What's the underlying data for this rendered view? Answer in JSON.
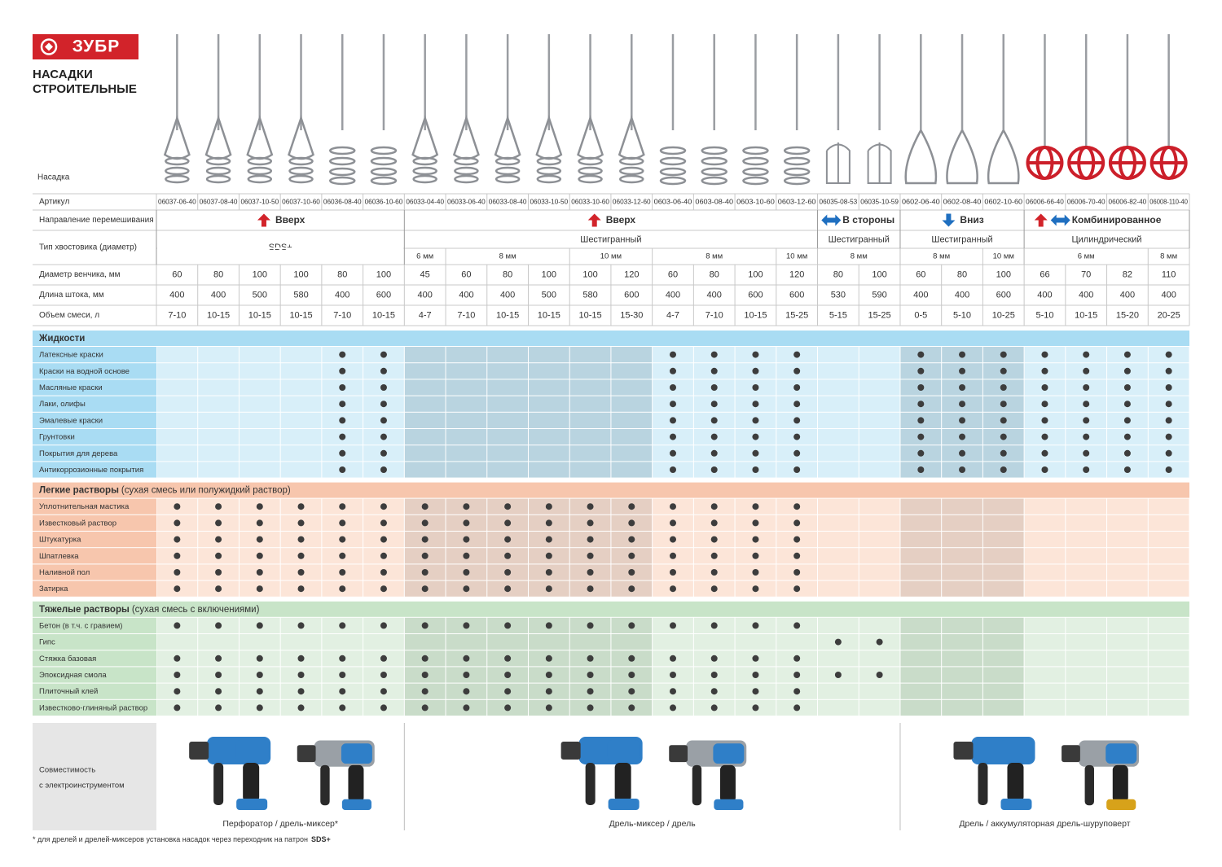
{
  "header": {
    "logo": "ЗУБР",
    "title": [
      "НАСАДКИ",
      "СТРОИТЕЛЬНЫЕ"
    ],
    "nozzle_label": "Насадка"
  },
  "specs": {
    "article_label": "Артикул",
    "articles": [
      "06037-06-40",
      "06037-08-40",
      "06037-10-50",
      "06037-10-60",
      "06036-08-40",
      "06036-10-60",
      "06033-04-40",
      "06033-06-40",
      "06033-08-40",
      "06033-10-50",
      "06033-10-60",
      "06033-12-60",
      "0603-06-40",
      "0603-08-40",
      "0603-10-60",
      "0603-12-60",
      "06035-08-53",
      "06035-10-59",
      "0602-06-40",
      "0602-08-40",
      "0602-10-60",
      "06006-66-40",
      "06006-70-40",
      "06006-82-40",
      "06008-110-40"
    ],
    "direction_label": "Направление перемешивания",
    "directions": [
      {
        "text": "Вверх",
        "arrow": "up",
        "span": 6
      },
      {
        "text": "Вверх",
        "arrow": "up",
        "span": 10
      },
      {
        "text": "В стороны",
        "arrow": "side",
        "span": 2
      },
      {
        "text": "Вниз",
        "arrow": "down",
        "span": 3
      },
      {
        "text": "Комбинированное",
        "arrow": "combined",
        "span": 4
      }
    ],
    "shank_label": "Тип хвостовика (диаметр)",
    "shanks": [
      {
        "text": "SDS+",
        "span": 6
      },
      {
        "text": "Шестигранный",
        "span": 10,
        "sizes": [
          {
            "text": "6 мм",
            "span": 1
          },
          {
            "text": "8 мм",
            "span": 3
          },
          {
            "text": "10 мм",
            "span": 2
          },
          {
            "text": "8 мм",
            "span": 3
          },
          {
            "text": "10 мм",
            "span": 1
          }
        ]
      },
      {
        "text": "Шестигранный",
        "span": 2,
        "sizes": [
          {
            "text": "8 мм",
            "span": 2
          }
        ]
      },
      {
        "text": "Шестигранный",
        "span": 3,
        "sizes": [
          {
            "text": "8 мм",
            "span": 2
          },
          {
            "text": "10 мм",
            "span": 1
          }
        ]
      },
      {
        "text": "Цилиндрический",
        "span": 4,
        "sizes": [
          {
            "text": "6 мм",
            "span": 3
          },
          {
            "text": "8 мм",
            "span": 1
          }
        ]
      }
    ],
    "diameter_label": "Диаметр венчика, мм",
    "diameters": [
      60,
      80,
      100,
      100,
      80,
      100,
      45,
      60,
      80,
      100,
      100,
      120,
      60,
      80,
      100,
      120,
      80,
      100,
      60,
      80,
      100,
      66,
      70,
      82,
      110
    ],
    "length_label": "Длина штока, мм",
    "lengths": [
      400,
      400,
      500,
      580,
      400,
      600,
      400,
      400,
      400,
      500,
      580,
      600,
      400,
      400,
      600,
      600,
      530,
      590,
      400,
      400,
      600,
      400,
      400,
      400,
      400
    ],
    "volume_label": "Объем смеси, л",
    "volumes": [
      "7-10",
      "10-15",
      "10-15",
      "10-15",
      "7-10",
      "10-15",
      "4-7",
      "7-10",
      "10-15",
      "10-15",
      "10-15",
      "15-30",
      "4-7",
      "7-10",
      "10-15",
      "15-25",
      "5-15",
      "15-25",
      "0-5",
      "5-10",
      "10-25",
      "5-10",
      "10-15",
      "15-20",
      "20-25"
    ]
  },
  "sections": [
    {
      "title": "Жидкости",
      "colors": {
        "header": "#a9dcf3",
        "label": "#a9dcf3",
        "cell": "#d8eff9",
        "shaded": "#b9d4e0"
      },
      "rows": [
        {
          "name": "Латексные краски",
          "marks": [
            0,
            0,
            0,
            0,
            1,
            1,
            0,
            0,
            0,
            0,
            0,
            0,
            1,
            1,
            1,
            1,
            0,
            0,
            1,
            1,
            1,
            1,
            1,
            1,
            1
          ]
        },
        {
          "name": "Краски на водной основе",
          "marks": [
            0,
            0,
            0,
            0,
            1,
            1,
            0,
            0,
            0,
            0,
            0,
            0,
            1,
            1,
            1,
            1,
            0,
            0,
            1,
            1,
            1,
            1,
            1,
            1,
            1
          ]
        },
        {
          "name": "Масляные краски",
          "marks": [
            0,
            0,
            0,
            0,
            1,
            1,
            0,
            0,
            0,
            0,
            0,
            0,
            1,
            1,
            1,
            1,
            0,
            0,
            1,
            1,
            1,
            1,
            1,
            1,
            1
          ]
        },
        {
          "name": "Лаки, олифы",
          "marks": [
            0,
            0,
            0,
            0,
            1,
            1,
            0,
            0,
            0,
            0,
            0,
            0,
            1,
            1,
            1,
            1,
            0,
            0,
            1,
            1,
            1,
            1,
            1,
            1,
            1
          ]
        },
        {
          "name": "Эмалевые краски",
          "marks": [
            0,
            0,
            0,
            0,
            1,
            1,
            0,
            0,
            0,
            0,
            0,
            0,
            1,
            1,
            1,
            1,
            0,
            0,
            1,
            1,
            1,
            1,
            1,
            1,
            1
          ]
        },
        {
          "name": "Грунтовки",
          "marks": [
            0,
            0,
            0,
            0,
            1,
            1,
            0,
            0,
            0,
            0,
            0,
            0,
            1,
            1,
            1,
            1,
            0,
            0,
            1,
            1,
            1,
            1,
            1,
            1,
            1
          ]
        },
        {
          "name": "Покрытия для дерева",
          "marks": [
            0,
            0,
            0,
            0,
            1,
            1,
            0,
            0,
            0,
            0,
            0,
            0,
            1,
            1,
            1,
            1,
            0,
            0,
            1,
            1,
            1,
            1,
            1,
            1,
            1
          ]
        },
        {
          "name": "Антикоррозионные покрытия",
          "marks": [
            0,
            0,
            0,
            0,
            1,
            1,
            0,
            0,
            0,
            0,
            0,
            0,
            1,
            1,
            1,
            1,
            0,
            0,
            1,
            1,
            1,
            1,
            1,
            1,
            1
          ]
        }
      ]
    },
    {
      "title": "Легкие растворы",
      "note": "(сухая смесь или полужидкий раствор)",
      "colors": {
        "header": "#f7c6ad",
        "label": "#f7c6ad",
        "cell": "#fce5d8",
        "shaded": "#e5cfc3"
      },
      "rows": [
        {
          "name": "Уплотнительная мастика",
          "marks": [
            1,
            1,
            1,
            1,
            1,
            1,
            1,
            1,
            1,
            1,
            1,
            1,
            1,
            1,
            1,
            1,
            0,
            0,
            0,
            0,
            0,
            0,
            0,
            0,
            0
          ]
        },
        {
          "name": "Известковый раствор",
          "marks": [
            1,
            1,
            1,
            1,
            1,
            1,
            1,
            1,
            1,
            1,
            1,
            1,
            1,
            1,
            1,
            1,
            0,
            0,
            0,
            0,
            0,
            0,
            0,
            0,
            0
          ]
        },
        {
          "name": "Штукатурка",
          "marks": [
            1,
            1,
            1,
            1,
            1,
            1,
            1,
            1,
            1,
            1,
            1,
            1,
            1,
            1,
            1,
            1,
            0,
            0,
            0,
            0,
            0,
            0,
            0,
            0,
            0
          ]
        },
        {
          "name": "Шпатлевка",
          "marks": [
            1,
            1,
            1,
            1,
            1,
            1,
            1,
            1,
            1,
            1,
            1,
            1,
            1,
            1,
            1,
            1,
            0,
            0,
            0,
            0,
            0,
            0,
            0,
            0,
            0
          ]
        },
        {
          "name": "Наливной пол",
          "marks": [
            1,
            1,
            1,
            1,
            1,
            1,
            1,
            1,
            1,
            1,
            1,
            1,
            1,
            1,
            1,
            1,
            0,
            0,
            0,
            0,
            0,
            0,
            0,
            0,
            0
          ]
        },
        {
          "name": "Затирка",
          "marks": [
            1,
            1,
            1,
            1,
            1,
            1,
            1,
            1,
            1,
            1,
            1,
            1,
            1,
            1,
            1,
            1,
            0,
            0,
            0,
            0,
            0,
            0,
            0,
            0,
            0
          ]
        }
      ]
    },
    {
      "title": "Тяжелые растворы",
      "note": "(сухая смесь с включениями)",
      "colors": {
        "header": "#c8e4c8",
        "label": "#c8e4c8",
        "cell": "#e2f0e2",
        "shaded": "#c9dcc9"
      },
      "rows": [
        {
          "name": "Бетон (в т.ч. с гравием)",
          "marks": [
            1,
            1,
            1,
            1,
            1,
            1,
            1,
            1,
            1,
            1,
            1,
            1,
            1,
            1,
            1,
            1,
            0,
            0,
            0,
            0,
            0,
            0,
            0,
            0,
            0
          ]
        },
        {
          "name": "Гипс",
          "marks": [
            0,
            0,
            0,
            0,
            0,
            0,
            0,
            0,
            0,
            0,
            0,
            0,
            0,
            0,
            0,
            0,
            1,
            1,
            0,
            0,
            0,
            0,
            0,
            0,
            0
          ]
        },
        {
          "name": "Стяжка базовая",
          "marks": [
            1,
            1,
            1,
            1,
            1,
            1,
            1,
            1,
            1,
            1,
            1,
            1,
            1,
            1,
            1,
            1,
            0,
            0,
            0,
            0,
            0,
            0,
            0,
            0,
            0
          ]
        },
        {
          "name": "Эпоксидная смола",
          "marks": [
            1,
            1,
            1,
            1,
            1,
            1,
            1,
            1,
            1,
            1,
            1,
            1,
            1,
            1,
            1,
            1,
            1,
            1,
            0,
            0,
            0,
            0,
            0,
            0,
            0
          ]
        },
        {
          "name": "Плиточный клей",
          "marks": [
            1,
            1,
            1,
            1,
            1,
            1,
            1,
            1,
            1,
            1,
            1,
            1,
            1,
            1,
            1,
            1,
            0,
            0,
            0,
            0,
            0,
            0,
            0,
            0,
            0
          ]
        },
        {
          "name": "Известково-глиняный раствор",
          "marks": [
            1,
            1,
            1,
            1,
            1,
            1,
            1,
            1,
            1,
            1,
            1,
            1,
            1,
            1,
            1,
            1,
            0,
            0,
            0,
            0,
            0,
            0,
            0,
            0,
            0
          ]
        }
      ]
    }
  ],
  "compatibility": {
    "label": [
      "Совместимость",
      "с электроинструментом"
    ],
    "groups": [
      {
        "caption": "Перфоратор / дрель-миксер*",
        "span": 6
      },
      {
        "caption": "Дрель-миксер / дрель",
        "span": 12
      },
      {
        "caption": "Дрель / аккумуляторная дрель-шуруповерт",
        "span": 7
      }
    ]
  },
  "footnote": {
    "text": "* для дрелей и дрелей-миксеров установка насадок через переходник на патрон",
    "bold": "SDS+"
  }
}
